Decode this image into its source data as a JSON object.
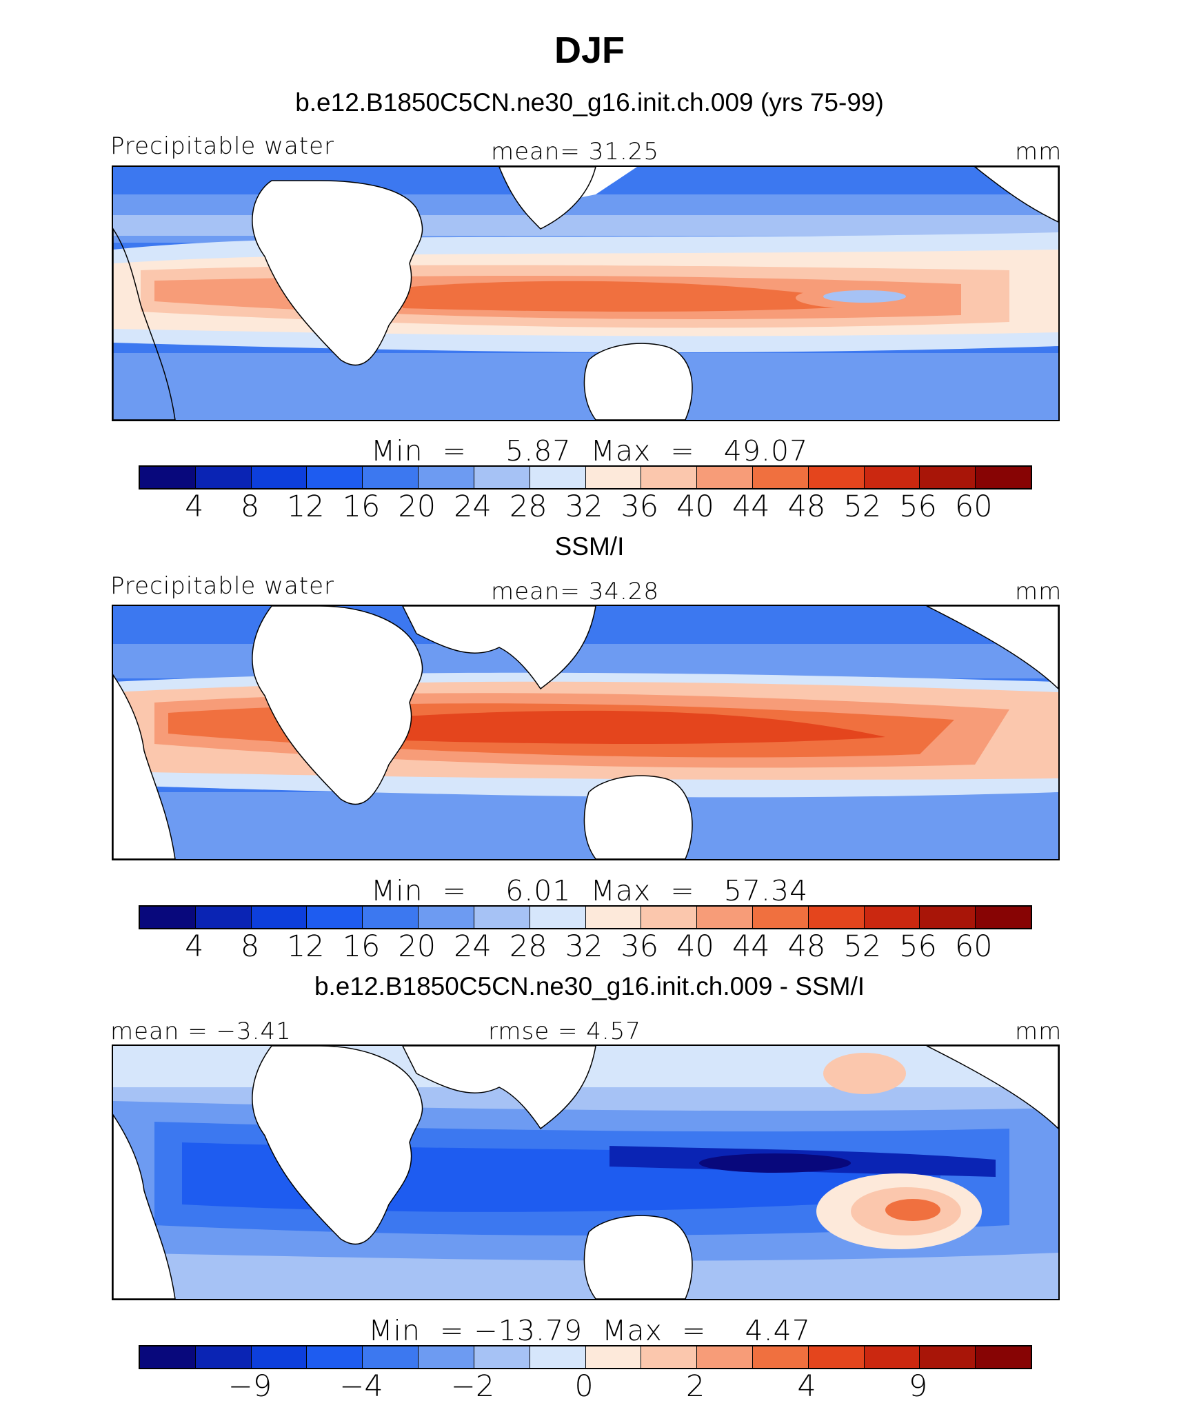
{
  "figure": {
    "title": "DJF",
    "units": "mm",
    "palette": [
      "#08087c",
      "#0a24b4",
      "#0d3fdc",
      "#1e5cf0",
      "#3c78f0",
      "#6d9bf2",
      "#a6c2f5",
      "#d6e6fb",
      "#fde9da",
      "#fbc7ad",
      "#f79c78",
      "#f0703f",
      "#e4451d",
      "#cb2810",
      "#a81508",
      "#870404"
    ]
  },
  "panels": [
    {
      "id": "model",
      "subtitle": "b.e12.B1850C5CN.ne30_g16.init.ch.009 (yrs 75-99)",
      "left_label": "Precipitable water",
      "center_label": "mean=  31.25",
      "right_label": "mm",
      "minmax": "Min  =    5.87  Max  =   49.07",
      "colorbar_ticks": [
        "4",
        "8",
        "12",
        "16",
        "20",
        "24",
        "28",
        "32",
        "36",
        "40",
        "44",
        "48",
        "52",
        "56",
        "60"
      ]
    },
    {
      "id": "obs",
      "subtitle": "SSM/I",
      "left_label": "Precipitable water",
      "center_label": "mean=  34.28",
      "right_label": "mm",
      "minmax": "Min  =    6.01  Max  =   57.34",
      "colorbar_ticks": [
        "4",
        "8",
        "12",
        "16",
        "20",
        "24",
        "28",
        "32",
        "36",
        "40",
        "44",
        "48",
        "52",
        "56",
        "60"
      ]
    },
    {
      "id": "diff",
      "subtitle": "b.e12.B1850C5CN.ne30_g16.init.ch.009 - SSM/I",
      "left_label": "mean =  −3.41",
      "center_label": "rmse =    4.57",
      "right_label": "mm",
      "minmax": "Min  = −13.79  Max  =    4.47",
      "colorbar_ticks": [
        "−9",
        "−4",
        "−2",
        "0",
        "2",
        "4",
        "9"
      ]
    }
  ]
}
